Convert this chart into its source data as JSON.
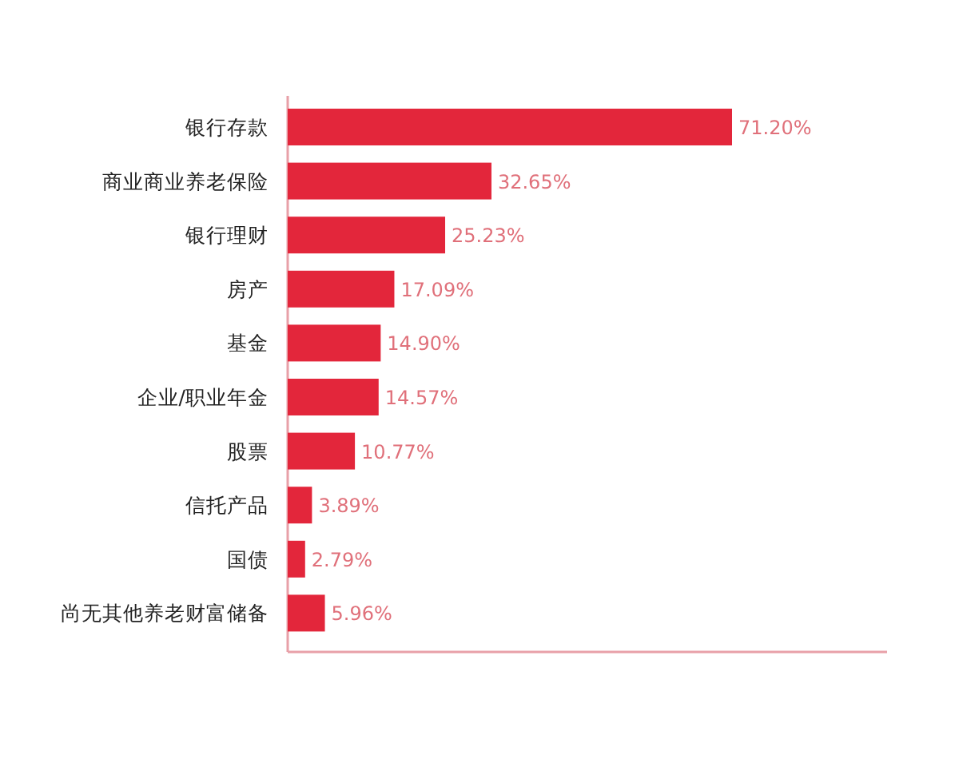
{
  "chart_data": {
    "type": "bar",
    "orientation": "horizontal",
    "categories": [
      "银行存款",
      "商业商业养老保险",
      "银行理财",
      "房产",
      "基金",
      "企业/职业年金",
      "股票",
      "信托产品",
      "国债",
      "尚无其他养老财富储备"
    ],
    "values": [
      71.2,
      32.65,
      25.23,
      17.09,
      14.9,
      14.57,
      10.77,
      3.89,
      2.79,
      5.96
    ],
    "value_labels": [
      "71.20%",
      "32.65%",
      "25.23%",
      "17.09%",
      "14.90%",
      "14.57%",
      "10.77%",
      "3.89%",
      "2.79%",
      "5.96%"
    ],
    "color": "#e3263b"
  }
}
